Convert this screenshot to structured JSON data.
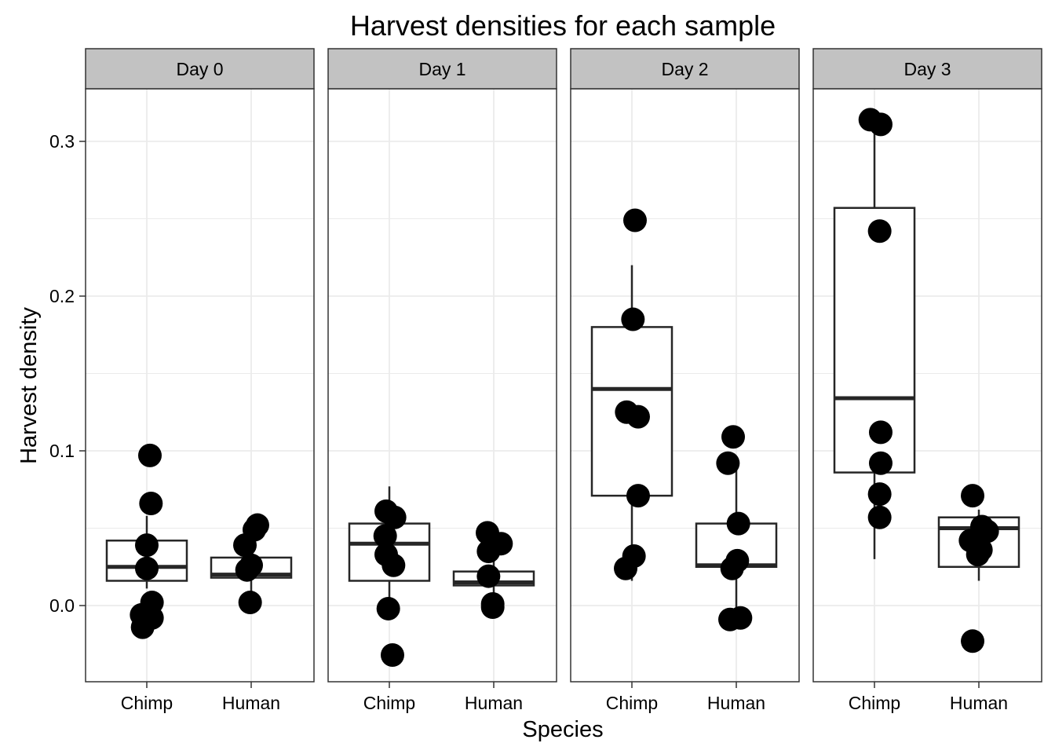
{
  "chart_data": {
    "type": "box",
    "title": "Harvest densities for each sample",
    "xlabel": "Species",
    "ylabel": "Harvest density",
    "ylim": [
      -0.05,
      0.333
    ],
    "y_ticks": [
      "0.0",
      "0.1",
      "0.2",
      "0.3"
    ],
    "y_tick_values": [
      0.0,
      0.1,
      0.2,
      0.3
    ],
    "categories": [
      "Chimp",
      "Human"
    ],
    "grid": true,
    "legend": "none",
    "colors": {
      "points": "#000000",
      "box_stroke": "#262626",
      "strip_fill": "#c2c2c2",
      "grid": "#ebebeb",
      "panel_border": "#333333"
    },
    "facets": [
      {
        "label": "Day 0",
        "groups": [
          {
            "category": "Chimp",
            "box": {
              "q1": 0.016,
              "median": 0.025,
              "q3": 0.042,
              "whisker_low": 0.011,
              "whisker_high": 0.058
            },
            "points": [
              [
                0.03,
                0.097
              ],
              [
                0.04,
                0.066
              ],
              [
                0.0,
                0.039
              ],
              [
                0.0,
                0.024
              ],
              [
                0.05,
                0.002
              ],
              [
                0.05,
                -0.008
              ],
              [
                -0.05,
                -0.006
              ],
              [
                -0.04,
                -0.014
              ]
            ]
          },
          {
            "category": "Human",
            "box": {
              "q1": 0.018,
              "median": 0.02,
              "q3": 0.031,
              "whisker_low": 0.004,
              "whisker_high": 0.046
            },
            "points": [
              [
                0.06,
                0.052
              ],
              [
                0.03,
                0.049
              ],
              [
                -0.06,
                0.039
              ],
              [
                0.0,
                0.026
              ],
              [
                -0.04,
                0.023
              ],
              [
                -0.01,
                0.002
              ]
            ]
          }
        ]
      },
      {
        "label": "Day 1",
        "groups": [
          {
            "category": "Chimp",
            "box": {
              "q1": 0.016,
              "median": 0.04,
              "q3": 0.053,
              "whisker_low": -0.003,
              "whisker_high": 0.077
            },
            "points": [
              [
                -0.03,
                0.061
              ],
              [
                0.05,
                0.057
              ],
              [
                -0.04,
                0.045
              ],
              [
                -0.03,
                0.033
              ],
              [
                0.04,
                0.026
              ],
              [
                -0.01,
                -0.002
              ],
              [
                0.03,
                -0.032
              ]
            ]
          },
          {
            "category": "Human",
            "box": {
              "q1": 0.013,
              "median": 0.015,
              "q3": 0.022,
              "whisker_low": 0.0,
              "whisker_high": 0.043
            },
            "points": [
              [
                -0.06,
                0.047
              ],
              [
                0.07,
                0.04
              ],
              [
                -0.05,
                0.035
              ],
              [
                -0.05,
                0.019
              ],
              [
                -0.01,
                0.001
              ],
              [
                -0.01,
                -0.001
              ]
            ]
          }
        ]
      },
      {
        "label": "Day 2",
        "groups": [
          {
            "category": "Chimp",
            "box": {
              "q1": 0.071,
              "median": 0.14,
              "q3": 0.18,
              "whisker_low": 0.016,
              "whisker_high": 0.22
            },
            "points": [
              [
                0.03,
                0.249
              ],
              [
                0.01,
                0.185
              ],
              [
                -0.05,
                0.125
              ],
              [
                0.06,
                0.122
              ],
              [
                0.06,
                0.071
              ],
              [
                0.02,
                0.032
              ],
              [
                -0.06,
                0.024
              ]
            ]
          },
          {
            "category": "Human",
            "box": {
              "q1": 0.025,
              "median": 0.026,
              "q3": 0.053,
              "whisker_low": -0.005,
              "whisker_high": 0.09
            },
            "points": [
              [
                -0.03,
                0.109
              ],
              [
                -0.08,
                0.092
              ],
              [
                0.02,
                0.053
              ],
              [
                0.01,
                0.029
              ],
              [
                -0.04,
                0.024
              ],
              [
                -0.06,
                -0.009
              ],
              [
                0.04,
                -0.008
              ]
            ]
          }
        ]
      },
      {
        "label": "Day 3",
        "groups": [
          {
            "category": "Chimp",
            "box": {
              "q1": 0.086,
              "median": 0.134,
              "q3": 0.257,
              "whisker_low": 0.03,
              "whisker_high": 0.31
            },
            "points": [
              [
                -0.04,
                0.314
              ],
              [
                0.06,
                0.311
              ],
              [
                0.05,
                0.242
              ],
              [
                0.06,
                0.112
              ],
              [
                0.06,
                0.092
              ],
              [
                0.05,
                0.072
              ],
              [
                0.05,
                0.057
              ]
            ]
          },
          {
            "category": "Human",
            "box": {
              "q1": 0.025,
              "median": 0.05,
              "q3": 0.057,
              "whisker_low": 0.016,
              "whisker_high": 0.062
            },
            "points": [
              [
                -0.06,
                0.071
              ],
              [
                0.03,
                0.051
              ],
              [
                0.08,
                0.048
              ],
              [
                -0.08,
                0.042
              ],
              [
                0.02,
                0.036
              ],
              [
                -0.01,
                0.033
              ],
              [
                -0.06,
                -0.023
              ]
            ]
          }
        ]
      }
    ]
  }
}
